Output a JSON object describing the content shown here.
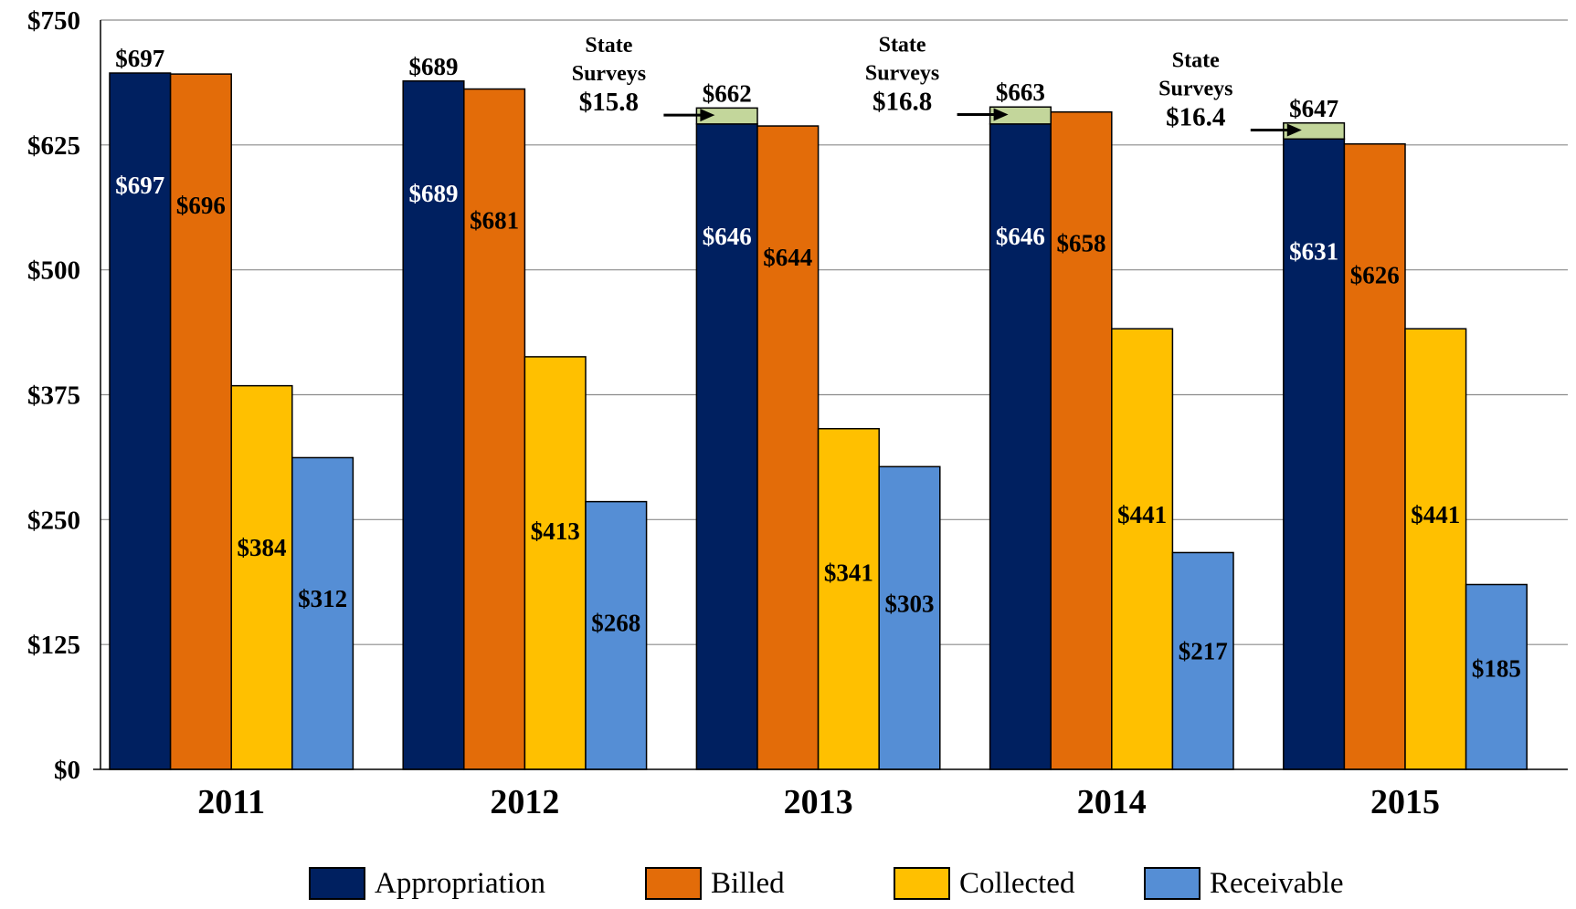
{
  "chart_data": {
    "type": "bar",
    "title": "",
    "xlabel": "",
    "ylabel": "",
    "ylim": [
      0,
      750
    ],
    "y_ticks": [
      "$0",
      "$125",
      "$250",
      "$375",
      "$500",
      "$625",
      "$750"
    ],
    "y_tick_values": [
      0,
      125,
      250,
      375,
      500,
      625,
      750
    ],
    "grid": true,
    "legend_position": "bottom",
    "categories": [
      "2011",
      "2012",
      "2013",
      "2014",
      "2015"
    ],
    "series": [
      {
        "name": "Appropriation",
        "color": "#002060",
        "values": [
          697,
          689,
          646,
          646,
          631
        ],
        "labels": [
          "$697",
          "$689",
          "$646",
          "$646",
          "$631"
        ]
      },
      {
        "name": "Billed",
        "color": "#E36C09",
        "values": [
          696,
          681,
          644,
          658,
          626
        ],
        "labels": [
          "$696",
          "$681",
          "$644",
          "$658",
          "$626"
        ]
      },
      {
        "name": "Collected",
        "color": "#FFC000",
        "values": [
          384,
          413,
          341,
          441,
          441
        ],
        "labels": [
          "$384",
          "$413",
          "$341",
          "$441",
          "$441"
        ]
      },
      {
        "name": "Receivable",
        "color": "#558ED5",
        "values": [
          312,
          268,
          303,
          217,
          185
        ],
        "labels": [
          "$312",
          "$268",
          "$303",
          "$217",
          "$185"
        ]
      }
    ],
    "appropriation_totals": {
      "labels": [
        "$697",
        "$689",
        "$662",
        "$663",
        "$647"
      ],
      "values": [
        697,
        689,
        662,
        663,
        647
      ]
    },
    "state_surveys": {
      "color": "#C3D69B",
      "title_line1": "State",
      "title_line2": "Surveys",
      "items": [
        {
          "category": "2013",
          "value": 15.8,
          "label": "$15.8"
        },
        {
          "category": "2014",
          "value": 16.8,
          "label": "$16.8"
        },
        {
          "category": "2015",
          "value": 16.4,
          "label": "$16.4"
        }
      ]
    }
  }
}
